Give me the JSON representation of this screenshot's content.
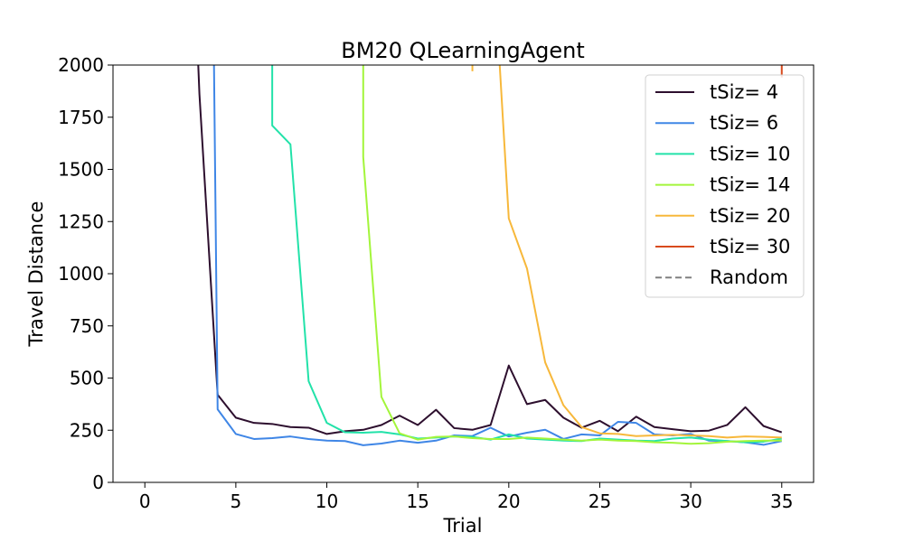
{
  "chart_data": {
    "type": "line",
    "title": "BM20  QLearningAgent",
    "xlabel": "Trial",
    "ylabel": "Travel Distance",
    "xlim": [
      -1.75,
      36.75
    ],
    "ylim": [
      0,
      2000
    ],
    "xticks": [
      0,
      5,
      10,
      15,
      20,
      25,
      30,
      35
    ],
    "yticks": [
      0,
      250,
      500,
      750,
      1000,
      1250,
      1500,
      1750,
      2000
    ],
    "grid": false,
    "legend_position": "top-right",
    "series": [
      {
        "name": "tSiz= 4",
        "color": "#2d0f2e",
        "dash": "solid",
        "x": [
          2,
          3,
          4,
          5,
          6,
          7,
          8,
          9,
          10,
          11,
          12,
          13,
          14,
          15,
          16,
          17,
          18,
          19,
          20,
          21,
          22,
          23,
          24,
          25,
          26,
          27,
          28,
          29,
          30,
          31,
          32,
          33,
          34,
          35
        ],
        "y": [
          4000,
          1860,
          420,
          310,
          285,
          280,
          265,
          262,
          232,
          245,
          252,
          275,
          320,
          275,
          348,
          260,
          252,
          275,
          560,
          375,
          395,
          310,
          262,
          295,
          245,
          315,
          265,
          255,
          245,
          248,
          275,
          360,
          270,
          240
        ]
      },
      {
        "name": "tSiz= 6",
        "color": "#3f86e6",
        "dash": "solid",
        "x": [
          3,
          3.8,
          4,
          5,
          6,
          7,
          8,
          9,
          10,
          11,
          12,
          13,
          14,
          15,
          16,
          17,
          18,
          19,
          20,
          21,
          22,
          23,
          24,
          25,
          26,
          27,
          28,
          29,
          30,
          31,
          32,
          33,
          34,
          35
        ],
        "y": [
          4000,
          2000,
          350,
          232,
          208,
          212,
          220,
          208,
          200,
          198,
          178,
          186,
          200,
          190,
          200,
          225,
          222,
          262,
          220,
          238,
          252,
          208,
          230,
          225,
          290,
          285,
          230,
          225,
          232,
          200,
          198,
          192,
          180,
          198
        ]
      },
      {
        "name": "tSiz= 10",
        "color": "#22e2a9",
        "dash": "solid",
        "x": [
          6,
          7,
          7,
          8,
          9,
          10,
          11,
          12,
          13,
          14,
          15,
          16,
          17,
          18,
          19,
          20,
          21,
          22,
          23,
          24,
          25,
          26,
          27,
          28,
          29,
          30,
          31,
          32,
          33,
          34,
          35
        ],
        "y": [
          4000,
          2000,
          1710,
          1620,
          485,
          285,
          240,
          238,
          242,
          230,
          210,
          215,
          220,
          218,
          205,
          230,
          210,
          205,
          200,
          198,
          210,
          205,
          200,
          198,
          210,
          215,
          205,
          198,
          192,
          195,
          210
        ]
      },
      {
        "name": "tSiz= 14",
        "color": "#a3f53b",
        "dash": "solid",
        "x": [
          11,
          12,
          12,
          13,
          14,
          15,
          16,
          17,
          18,
          19,
          20,
          21,
          22,
          23,
          24,
          25,
          26,
          27,
          28,
          29,
          30,
          31,
          32,
          33,
          34,
          35
        ],
        "y": [
          4000,
          2000,
          1560,
          410,
          235,
          205,
          218,
          220,
          212,
          208,
          208,
          215,
          210,
          205,
          200,
          205,
          200,
          198,
          192,
          190,
          185,
          188,
          195,
          198,
          200,
          200
        ]
      },
      {
        "name": "tSiz= 20",
        "color": "#f7b83b",
        "dash": "solid",
        "x": [
          18,
          18,
          19,
          19.5,
          20,
          21,
          22,
          23,
          24,
          25,
          26,
          27,
          28,
          29,
          30,
          31,
          32,
          33,
          34,
          35
        ],
        "y": [
          1970,
          2000,
          null,
          2000,
          1265,
          1025,
          575,
          370,
          265,
          235,
          232,
          222,
          225,
          228,
          225,
          222,
          215,
          220,
          218,
          215
        ]
      },
      {
        "name": "tSiz= 30",
        "color": "#d94a1d",
        "dash": "solid",
        "x": [
          35,
          35
        ],
        "y": [
          1940,
          2000
        ]
      },
      {
        "name": "Random",
        "color": "#808080",
        "dash": "dashed",
        "x": [],
        "y": []
      }
    ]
  }
}
